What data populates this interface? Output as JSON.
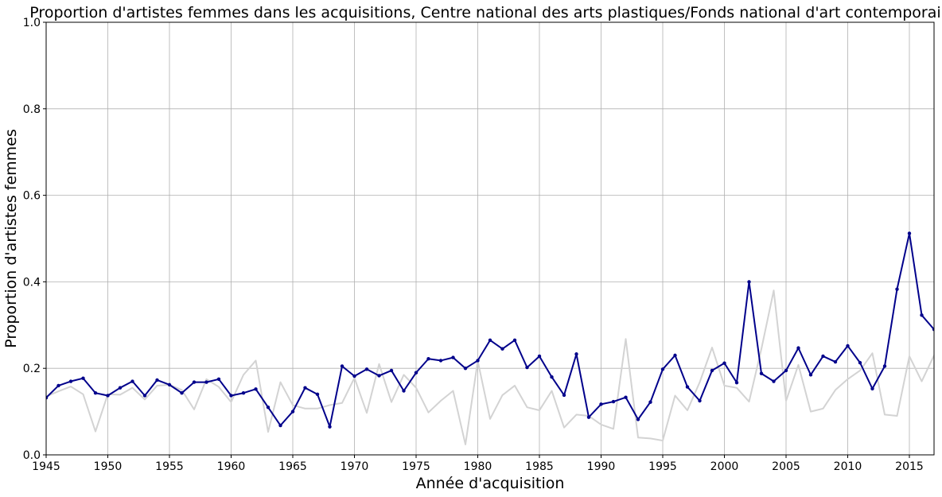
{
  "chart_data": {
    "type": "line",
    "title": "Proportion d'artistes femmes dans les acquisitions, Centre national des arts plastiques/Fonds national d'art contemporain",
    "xlabel": "Année d'acquisition",
    "ylabel": "Proportion d'artistes femmes",
    "xlim": [
      1945,
      2017
    ],
    "ylim": [
      0,
      1
    ],
    "xticks": [
      1945,
      1950,
      1955,
      1960,
      1965,
      1970,
      1975,
      1980,
      1985,
      1990,
      1995,
      2000,
      2005,
      2010,
      2015
    ],
    "yticks": [
      "0.0",
      "0.2",
      "0.4",
      "0.6",
      "0.8",
      "1.0"
    ],
    "grid": true,
    "series": [
      {
        "color": "#d3d3d3",
        "markers": false,
        "x": [
          1945,
          1946,
          1947,
          1948,
          1949,
          1950,
          1951,
          1952,
          1953,
          1954,
          1955,
          1956,
          1957,
          1958,
          1959,
          1960,
          1961,
          1962,
          1963,
          1964,
          1965,
          1966,
          1967,
          1968,
          1969,
          1970,
          1971,
          1972,
          1973,
          1974,
          1975,
          1976,
          1977,
          1978,
          1979,
          1980,
          1981,
          1982,
          1983,
          1984,
          1985,
          1986,
          1987,
          1988,
          1989,
          1990,
          1991,
          1992,
          1993,
          1994,
          1995,
          1996,
          1997,
          1998,
          1999,
          2000,
          2001,
          2002,
          2003,
          2004,
          2005,
          2006,
          2007,
          2008,
          2009,
          2010,
          2011,
          2012,
          2013,
          2014,
          2015,
          2016,
          2017
        ],
        "y": [
          0.135,
          0.147,
          0.158,
          0.14,
          0.054,
          0.14,
          0.139,
          0.155,
          0.128,
          0.16,
          0.162,
          0.15,
          0.105,
          0.175,
          0.157,
          0.122,
          0.185,
          0.218,
          0.053,
          0.168,
          0.115,
          0.107,
          0.107,
          0.115,
          0.12,
          0.178,
          0.097,
          0.21,
          0.122,
          0.185,
          0.155,
          0.098,
          0.125,
          0.148,
          0.024,
          0.217,
          0.083,
          0.138,
          0.16,
          0.11,
          0.103,
          0.148,
          0.063,
          0.093,
          0.09,
          0.07,
          0.06,
          0.268,
          0.04,
          0.038,
          0.033,
          0.137,
          0.103,
          0.168,
          0.248,
          0.16,
          0.155,
          0.123,
          0.245,
          0.38,
          0.125,
          0.208,
          0.1,
          0.107,
          0.15,
          0.175,
          0.195,
          0.235,
          0.093,
          0.09,
          0.228,
          0.17,
          0.23
        ]
      },
      {
        "color": "#00008b",
        "markers": true,
        "x": [
          1945,
          1946,
          1947,
          1948,
          1949,
          1950,
          1951,
          1952,
          1953,
          1954,
          1955,
          1956,
          1957,
          1958,
          1959,
          1960,
          1961,
          1962,
          1963,
          1964,
          1965,
          1966,
          1967,
          1968,
          1969,
          1970,
          1971,
          1972,
          1973,
          1974,
          1975,
          1976,
          1977,
          1978,
          1979,
          1980,
          1981,
          1982,
          1983,
          1984,
          1985,
          1986,
          1987,
          1988,
          1989,
          1990,
          1991,
          1992,
          1993,
          1994,
          1995,
          1996,
          1997,
          1998,
          1999,
          2000,
          2001,
          2002,
          2003,
          2004,
          2005,
          2006,
          2007,
          2008,
          2009,
          2010,
          2011,
          2012,
          2013,
          2014,
          2015,
          2016,
          2017
        ],
        "y": [
          0.132,
          0.16,
          0.17,
          0.177,
          0.143,
          0.137,
          0.155,
          0.17,
          0.137,
          0.173,
          0.162,
          0.143,
          0.168,
          0.168,
          0.175,
          0.137,
          0.143,
          0.152,
          0.11,
          0.068,
          0.1,
          0.155,
          0.14,
          0.065,
          0.205,
          0.182,
          0.198,
          0.183,
          0.195,
          0.148,
          0.19,
          0.222,
          0.218,
          0.225,
          0.2,
          0.218,
          0.265,
          0.245,
          0.265,
          0.202,
          0.228,
          0.18,
          0.138,
          0.233,
          0.087,
          0.117,
          0.123,
          0.133,
          0.082,
          0.122,
          0.198,
          0.23,
          0.157,
          0.125,
          0.195,
          0.212,
          0.167,
          0.4,
          0.188,
          0.17,
          0.195,
          0.247,
          0.185,
          0.228,
          0.215,
          0.252,
          0.213,
          0.153,
          0.205,
          0.383,
          0.512,
          0.323,
          0.29
        ]
      }
    ]
  }
}
